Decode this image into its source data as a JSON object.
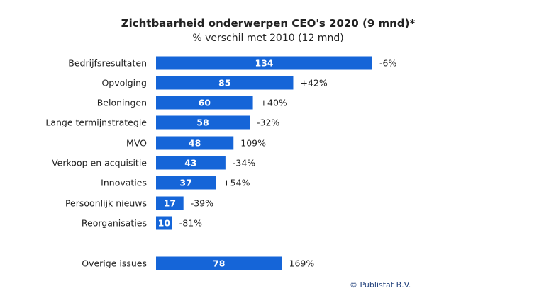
{
  "chart_data": {
    "type": "bar",
    "orientation": "horizontal",
    "title": "Zichtbaarheid onderwerpen CEO's 2020 (9 mnd)*",
    "subtitle": "% verschil met 2010 (12 mnd)",
    "categories": [
      "Bedrijfsresultaten",
      "Opvolging",
      "Beloningen",
      "Lange termijnstrategie",
      "MVO",
      "Verkoop en acquisitie",
      "Innovaties",
      "Persoonlijk nieuws",
      "Reorganisaties",
      "Overige issues"
    ],
    "values": [
      134,
      85,
      60,
      58,
      48,
      43,
      37,
      17,
      10,
      78
    ],
    "change_labels": [
      "-6%",
      "+42%",
      "+40%",
      "-32%",
      "109%",
      "-34%",
      "+54%",
      "-39%",
      "-81%",
      "169%"
    ],
    "xlim": [
      0,
      140
    ],
    "grid": false,
    "legend": "none",
    "colors": {
      "bar": "#1565d8",
      "bar_text": "#ffffff",
      "text": "#222222",
      "credit": "#1f3f7a"
    },
    "credit": "© Publistat B.V."
  }
}
